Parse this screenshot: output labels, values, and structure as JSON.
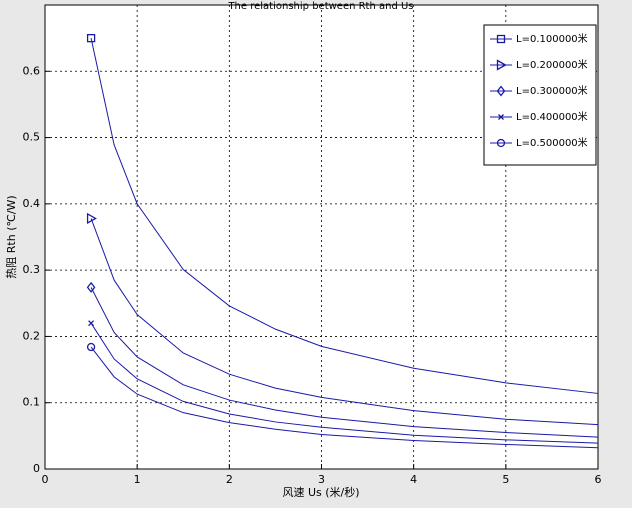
{
  "chart_data": {
    "type": "line",
    "title": "The relationship between Rth and Us",
    "x_label": "风速 Us (米/秒)",
    "y_label": "热阻 Rth (℃/W)",
    "x": [
      0.5,
      0.75,
      1,
      1.5,
      2,
      2.5,
      3,
      4,
      5,
      6
    ],
    "series": [
      {
        "name": "L=0.100000米",
        "color": "#1a1aa8",
        "marker": "square",
        "values": [
          0.65,
          0.489,
          0.4,
          0.301,
          0.246,
          0.211,
          0.185,
          0.152,
          0.13,
          0.114
        ]
      },
      {
        "name": "L=0.200000米",
        "color": "#1a1aa8",
        "marker": "triangle-right",
        "values": [
          0.378,
          0.285,
          0.233,
          0.175,
          0.143,
          0.122,
          0.108,
          0.088,
          0.075,
          0.067
        ]
      },
      {
        "name": "L=0.300000米",
        "color": "#1a1aa8",
        "marker": "diamond",
        "values": [
          0.274,
          0.206,
          0.169,
          0.127,
          0.104,
          0.089,
          0.078,
          0.064,
          0.055,
          0.048
        ]
      },
      {
        "name": "L=0.400000米",
        "color": "#1a1aa8",
        "marker": "x",
        "values": [
          0.22,
          0.166,
          0.136,
          0.102,
          0.083,
          0.071,
          0.063,
          0.051,
          0.044,
          0.039
        ]
      },
      {
        "name": "L=0.500000米",
        "color": "#1a1aa8",
        "marker": "circle",
        "values": [
          0.184,
          0.139,
          0.113,
          0.085,
          0.07,
          0.06,
          0.052,
          0.043,
          0.037,
          0.032
        ]
      }
    ],
    "xlim": [
      0,
      6
    ],
    "xticks": [
      0,
      1,
      2,
      3,
      4,
      5,
      6
    ],
    "ylim": [
      0,
      0.7
    ],
    "yticks": [
      0,
      0.1,
      0.2,
      0.3,
      0.4,
      0.5,
      0.6
    ],
    "grid": true,
    "legend": "northeast"
  }
}
